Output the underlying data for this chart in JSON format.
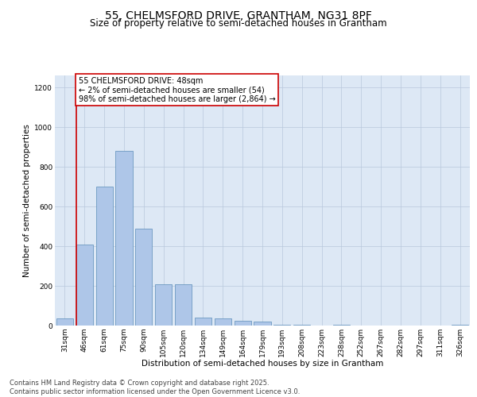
{
  "title": "55, CHELMSFORD DRIVE, GRANTHAM, NG31 8PF",
  "subtitle": "Size of property relative to semi-detached houses in Grantham",
  "xlabel": "Distribution of semi-detached houses by size in Grantham",
  "ylabel": "Number of semi-detached properties",
  "categories": [
    "31sqm",
    "46sqm",
    "61sqm",
    "75sqm",
    "90sqm",
    "105sqm",
    "120sqm",
    "134sqm",
    "149sqm",
    "164sqm",
    "179sqm",
    "193sqm",
    "208sqm",
    "223sqm",
    "238sqm",
    "252sqm",
    "267sqm",
    "282sqm",
    "297sqm",
    "311sqm",
    "326sqm"
  ],
  "values": [
    35,
    410,
    700,
    880,
    490,
    210,
    210,
    40,
    35,
    25,
    20,
    5,
    5,
    0,
    5,
    0,
    0,
    0,
    0,
    0,
    5
  ],
  "bar_color": "#aec6e8",
  "bar_edge_color": "#5b8db8",
  "highlight_color": "#cc0000",
  "annotation_title": "55 CHELMSFORD DRIVE: 48sqm",
  "annotation_line1": "← 2% of semi-detached houses are smaller (54)",
  "annotation_line2": "98% of semi-detached houses are larger (2,864) →",
  "annotation_box_color": "#ffffff",
  "annotation_box_edge_color": "#cc0000",
  "vline_bar_index": 1,
  "ylim": [
    0,
    1260
  ],
  "yticks": [
    0,
    200,
    400,
    600,
    800,
    1000,
    1200
  ],
  "background_color": "#dde8f5",
  "grid_color": "#b8c8dc",
  "footer_line1": "Contains HM Land Registry data © Crown copyright and database right 2025.",
  "footer_line2": "Contains public sector information licensed under the Open Government Licence v3.0.",
  "title_fontsize": 10,
  "subtitle_fontsize": 8.5,
  "axis_label_fontsize": 7.5,
  "tick_fontsize": 6.5,
  "footer_fontsize": 6,
  "annotation_fontsize": 7
}
